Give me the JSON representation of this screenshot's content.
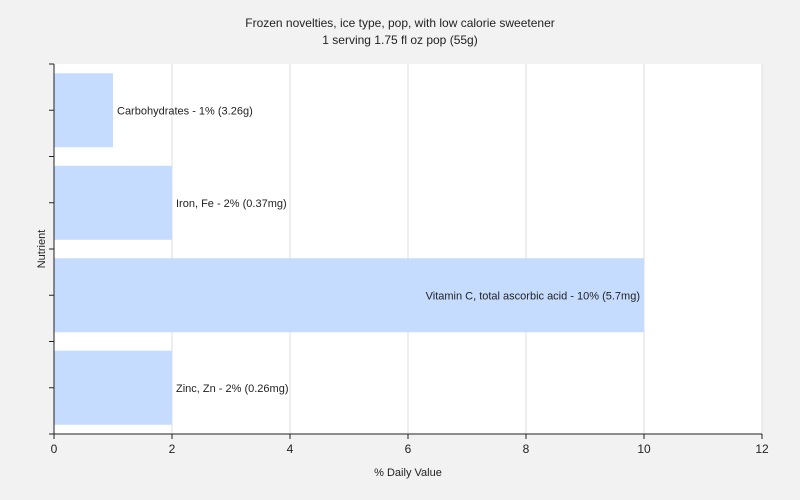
{
  "chart_data": {
    "type": "bar",
    "orientation": "horizontal",
    "title": "Frozen novelties, ice type, pop, with low calorie sweetener",
    "subtitle": "1 serving 1.75 fl oz pop (55g)",
    "xlabel": "% Daily Value",
    "ylabel": "Nutrient",
    "xlim": [
      0,
      12
    ],
    "xticks": [
      0,
      2,
      4,
      6,
      8,
      10,
      12
    ],
    "grid": true,
    "bar_color": "#c5dcff",
    "categories": [
      "Carbohydrates",
      "Iron, Fe",
      "Vitamin C, total ascorbic acid",
      "Zinc, Zn"
    ],
    "values": [
      1,
      2,
      10,
      2
    ],
    "labels": [
      "Carbohydrates - 1% (3.26g)",
      "Iron, Fe - 2% (0.37mg)",
      "Vitamin C, total ascorbic acid - 10% (5.7mg)",
      "Zinc, Zn - 2% (0.26mg)"
    ]
  }
}
